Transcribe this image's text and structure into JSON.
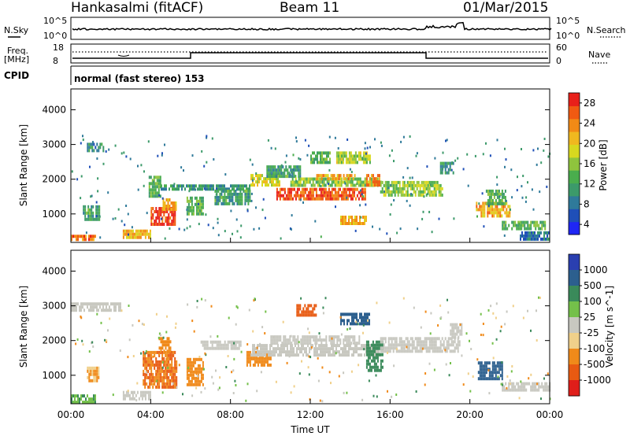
{
  "header": {
    "station": "Hankasalmi (fitACF)",
    "beam": "Beam 11",
    "date": "01/Mar/2015"
  },
  "noise_panel": {
    "left_label": "N.Sky",
    "right_label": "N.Search",
    "left_ticks": [
      "10^5",
      "10^0"
    ],
    "right_ticks": [
      "10^5",
      "10^0"
    ]
  },
  "freq_panel": {
    "left_label": "Freq.",
    "left_unit": "[MHz]",
    "right_label": "Nave",
    "left_ticks": [
      "18",
      "8"
    ],
    "right_ticks": [
      "60",
      "0"
    ]
  },
  "cpid_panel": {
    "label": "CPID",
    "text": "normal (fast stereo) 153"
  },
  "chart_data": [
    {
      "type": "heatmap",
      "name": "power",
      "ylabel": "Slant Range [km]",
      "xlabel": "Time UT",
      "x_ticks": [
        "00:00",
        "04:00",
        "08:00",
        "12:00",
        "16:00",
        "20:00",
        "00:00"
      ],
      "xlim_hours": [
        0,
        24
      ],
      "y_ticks": [
        "4000",
        "3000",
        "2000",
        "1000"
      ],
      "ylim_km": [
        180,
        4600
      ],
      "colorbar": {
        "label": "Power [dB]",
        "ticks": [
          "28",
          "24",
          "20",
          "16",
          "12",
          "8",
          "4"
        ],
        "range": [
          0,
          30
        ],
        "colors": [
          "#1f26f5",
          "#1f4fb8",
          "#2f7a9a",
          "#3c9a6a",
          "#4aad4d",
          "#8fc43d",
          "#d8d81f",
          "#f0b81f",
          "#f28a16",
          "#f05a12",
          "#e8201a"
        ]
      },
      "regions": [
        {
          "t0": 0.0,
          "t1": 1.2,
          "r0": 250,
          "r1": 400,
          "value": 26
        },
        {
          "t0": 0.6,
          "t1": 1.4,
          "r0": 850,
          "r1": 1250,
          "value": 10
        },
        {
          "t0": 0.8,
          "t1": 1.6,
          "r0": 2850,
          "r1": 3050,
          "value": 8
        },
        {
          "t0": 2.6,
          "t1": 4.0,
          "r0": 350,
          "r1": 550,
          "value": 21
        },
        {
          "t0": 3.9,
          "t1": 4.5,
          "r0": 1550,
          "r1": 2100,
          "value": 12
        },
        {
          "t0": 4.0,
          "t1": 5.2,
          "r0": 700,
          "r1": 1200,
          "value": 28
        },
        {
          "t0": 4.6,
          "t1": 5.3,
          "r0": 1150,
          "r1": 1450,
          "value": 22
        },
        {
          "t0": 4.5,
          "t1": 9.0,
          "r0": 1700,
          "r1": 1850,
          "value": 8
        },
        {
          "t0": 5.8,
          "t1": 6.6,
          "r0": 1000,
          "r1": 1500,
          "value": 12
        },
        {
          "t0": 7.2,
          "t1": 9.0,
          "r0": 1300,
          "r1": 1700,
          "value": 10
        },
        {
          "t0": 9.0,
          "t1": 10.5,
          "r0": 1850,
          "r1": 2150,
          "value": 18
        },
        {
          "t0": 9.8,
          "t1": 11.5,
          "r0": 2100,
          "r1": 2400,
          "value": 10
        },
        {
          "t0": 10.3,
          "t1": 14.8,
          "r0": 1450,
          "r1": 1750,
          "value": 27
        },
        {
          "t0": 11.0,
          "t1": 15.5,
          "r0": 1800,
          "r1": 2050,
          "value": 14
        },
        {
          "t0": 12.3,
          "t1": 14.2,
          "r0": 2000,
          "r1": 2150,
          "value": 22
        },
        {
          "t0": 12.0,
          "t1": 13.0,
          "r0": 2500,
          "r1": 2800,
          "value": 12
        },
        {
          "t0": 13.3,
          "t1": 15.0,
          "r0": 2500,
          "r1": 2800,
          "value": 16
        },
        {
          "t0": 13.5,
          "t1": 14.8,
          "r0": 750,
          "r1": 950,
          "value": 22
        },
        {
          "t0": 14.8,
          "t1": 15.5,
          "r0": 1800,
          "r1": 2150,
          "value": 24
        },
        {
          "t0": 15.5,
          "t1": 18.6,
          "r0": 1550,
          "r1": 1950,
          "value": 15
        },
        {
          "t0": 18.5,
          "t1": 19.2,
          "r0": 2200,
          "r1": 2500,
          "value": 9
        },
        {
          "t0": 20.3,
          "t1": 22.0,
          "r0": 900,
          "r1": 1350,
          "value": 22
        },
        {
          "t0": 20.8,
          "t1": 21.8,
          "r0": 1300,
          "r1": 1700,
          "value": 12
        },
        {
          "t0": 21.6,
          "t1": 23.8,
          "r0": 600,
          "r1": 800,
          "value": 12
        },
        {
          "t0": 22.5,
          "t1": 24.0,
          "r0": 300,
          "r1": 500,
          "value": 6
        }
      ]
    },
    {
      "type": "heatmap",
      "name": "velocity",
      "ylabel": "Slant Range [km]",
      "xlabel": "Time UT",
      "x_ticks": [
        "00:00",
        "04:00",
        "08:00",
        "12:00",
        "16:00",
        "20:00",
        "00:00"
      ],
      "xlim_hours": [
        0,
        24
      ],
      "y_ticks": [
        "4000",
        "3000",
        "2000",
        "1000"
      ],
      "ylim_km": [
        180,
        4600
      ],
      "colorbar": {
        "label": "Velocity [m s^-1]",
        "ticks": [
          "1000",
          "500",
          "100",
          "25",
          "-25",
          "-100",
          "-500",
          "-1000"
        ],
        "colors": [
          "#2a3fb0",
          "#2c5f8e",
          "#3a8a5a",
          "#74c04a",
          "#c8c8c0",
          "#f0d08a",
          "#f08a1a",
          "#e85a12",
          "#e01e1a"
        ]
      },
      "regions": [
        {
          "t0": 0.0,
          "t1": 1.2,
          "r0": 250,
          "r1": 450,
          "value": 60
        },
        {
          "t0": 0.8,
          "t1": 1.4,
          "r0": 850,
          "r1": 1250,
          "value": -60
        },
        {
          "t0": 2.6,
          "t1": 4.0,
          "r0": 350,
          "r1": 550,
          "value": 0
        },
        {
          "t0": 3.6,
          "t1": 5.3,
          "r0": 700,
          "r1": 1700,
          "value": -300
        },
        {
          "t0": 4.4,
          "t1": 5.0,
          "r0": 1700,
          "r1": 2100,
          "value": -150
        },
        {
          "t0": 5.8,
          "t1": 6.6,
          "r0": 700,
          "r1": 1500,
          "value": -200
        },
        {
          "t0": 6.5,
          "t1": 8.5,
          "r0": 1800,
          "r1": 2000,
          "value": 0
        },
        {
          "t0": 8.8,
          "t1": 10.0,
          "r0": 1300,
          "r1": 1700,
          "value": -80
        },
        {
          "t0": 9.0,
          "t1": 15.5,
          "r0": 1550,
          "r1": 1900,
          "value": 0
        },
        {
          "t0": 10.0,
          "t1": 14.5,
          "r0": 1900,
          "r1": 2150,
          "value": 0
        },
        {
          "t0": 11.3,
          "t1": 12.3,
          "r0": 2750,
          "r1": 3050,
          "value": -350
        },
        {
          "t0": 13.5,
          "t1": 15.0,
          "r0": 2450,
          "r1": 2800,
          "value": 400
        },
        {
          "t0": 14.8,
          "t1": 15.6,
          "r0": 1150,
          "r1": 2000,
          "value": 100
        },
        {
          "t0": 15.5,
          "t1": 19.5,
          "r0": 1700,
          "r1": 2100,
          "value": 0
        },
        {
          "t0": 19.0,
          "t1": 19.6,
          "r0": 2100,
          "r1": 2500,
          "value": 0
        },
        {
          "t0": 20.4,
          "t1": 21.6,
          "r0": 900,
          "r1": 1400,
          "value": 600
        },
        {
          "t0": 21.6,
          "t1": 24.0,
          "r0": 600,
          "r1": 800,
          "value": 0
        },
        {
          "t0": 0.0,
          "t1": 2.5,
          "r0": 2850,
          "r1": 3100,
          "value": 0
        }
      ]
    }
  ]
}
